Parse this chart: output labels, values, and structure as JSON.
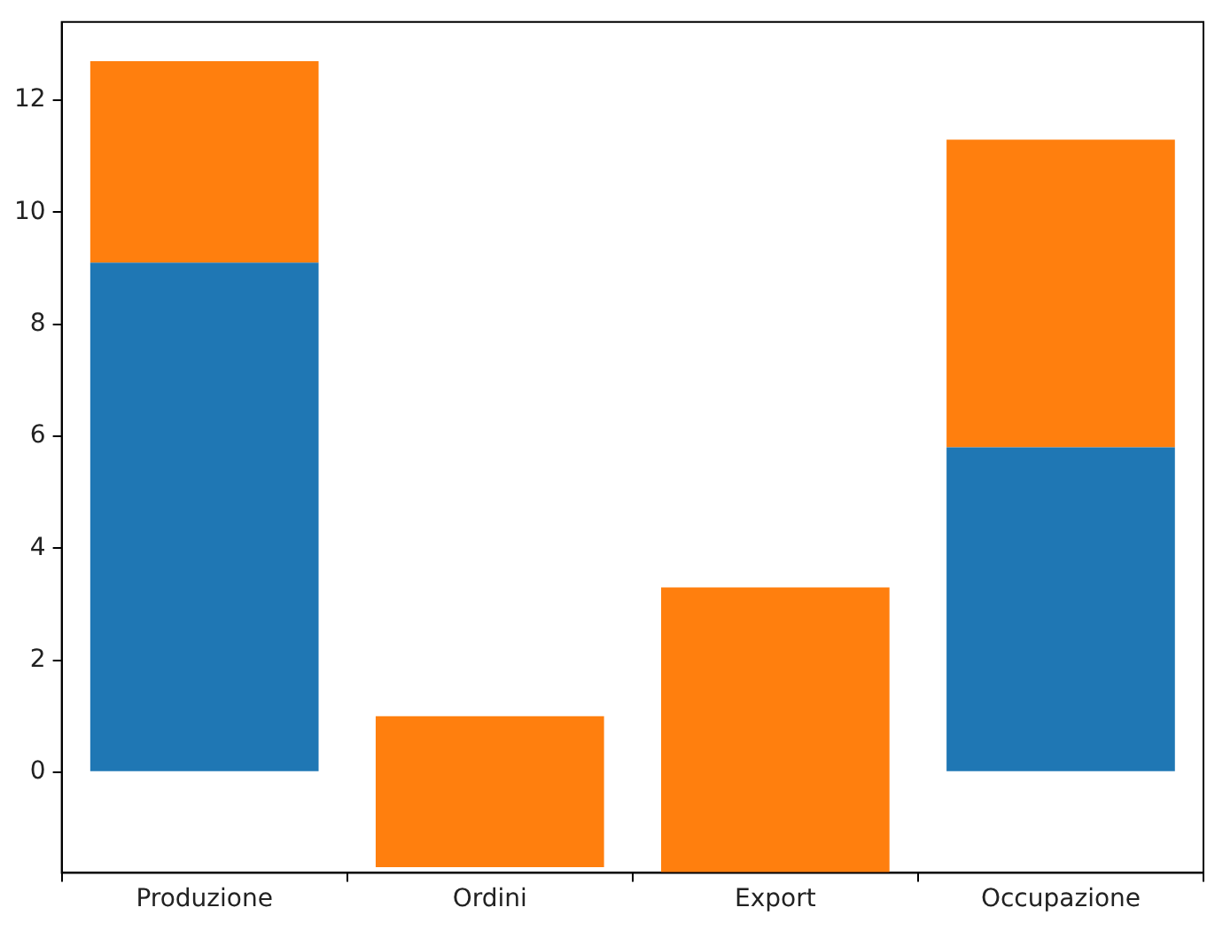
{
  "chart_data": {
    "type": "bar",
    "stacked": true,
    "categories": [
      "Produzione",
      "Ordini",
      "Export",
      "Occupazione"
    ],
    "series": [
      {
        "color": "#1f77b4",
        "values": [
          9.1,
          null,
          null,
          5.8
        ]
      },
      {
        "color": "#ff7f0e",
        "base": [
          null,
          -1.7,
          -1.8,
          null
        ],
        "values": [
          3.6,
          2.7,
          5.1,
          5.5
        ]
      }
    ],
    "ylim": [
      -1.8,
      13.4
    ],
    "yticks": [
      0,
      2,
      4,
      6,
      8,
      10,
      12
    ],
    "grid": false,
    "legend": false
  }
}
